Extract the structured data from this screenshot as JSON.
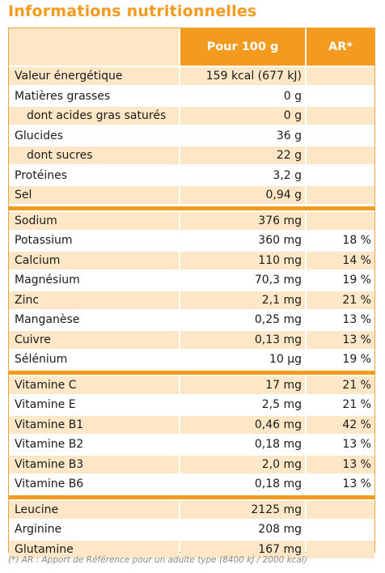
{
  "title": "Informations nutritionnelles",
  "header": {
    "col_value": "Pour 100 g",
    "col_ar": "AR*"
  },
  "sections": [
    [
      {
        "name": "Valeur énergétique",
        "value": "159 kcal (677 kJ)",
        "ar": ""
      },
      {
        "name": "Matières grasses",
        "value": "0 g",
        "ar": ""
      },
      {
        "name": "dont acides gras saturés",
        "value": "0 g",
        "ar": "",
        "indent": true
      },
      {
        "name": "Glucides",
        "value": "36 g",
        "ar": ""
      },
      {
        "name": "dont sucres",
        "value": "22 g",
        "ar": "",
        "indent": true
      },
      {
        "name": "Protéines",
        "value": "3,2 g",
        "ar": ""
      },
      {
        "name": "Sel",
        "value": "0,94 g",
        "ar": ""
      }
    ],
    [
      {
        "name": "Sodium",
        "value": "376 mg",
        "ar": ""
      },
      {
        "name": "Potassium",
        "value": "360 mg",
        "ar": "18 %"
      },
      {
        "name": "Calcium",
        "value": "110 mg",
        "ar": "14 %"
      },
      {
        "name": "Magnésium",
        "value": "70,3 mg",
        "ar": "19 %"
      },
      {
        "name": "Zinc",
        "value": "2,1 mg",
        "ar": "21 %"
      },
      {
        "name": "Manganèse",
        "value": "0,25 mg",
        "ar": "13 %"
      },
      {
        "name": "Cuivre",
        "value": "0,13 mg",
        "ar": "13 %"
      },
      {
        "name": "Sélénium",
        "value": "10 µg",
        "ar": "19 %"
      }
    ],
    [
      {
        "name": "Vitamine C",
        "value": "17 mg",
        "ar": "21 %"
      },
      {
        "name": "Vitamine E",
        "value": "2,5 mg",
        "ar": "21 %"
      },
      {
        "name": "Vitamine B1",
        "value": "0,46 mg",
        "ar": "42 %"
      },
      {
        "name": "Vitamine B2",
        "value": "0,18 mg",
        "ar": "13 %"
      },
      {
        "name": "Vitamine B3",
        "value": "2,0 mg",
        "ar": "13 %"
      },
      {
        "name": "Vitamine B6",
        "value": "0,18 mg",
        "ar": "13 %"
      }
    ],
    [
      {
        "name": "Leucine",
        "value": "2125 mg",
        "ar": ""
      },
      {
        "name": "Arginine",
        "value": "208 mg",
        "ar": ""
      },
      {
        "name": "Glutamine",
        "value": "167 mg",
        "ar": ""
      }
    ]
  ],
  "footnote": "(*) AR : Apport de Référence pour un adulte type (8400 kJ / 2000 kcal)",
  "colors": {
    "accent": "#f39a1f",
    "shade": "#fde7c6",
    "footnote": "#8a8a8a"
  }
}
